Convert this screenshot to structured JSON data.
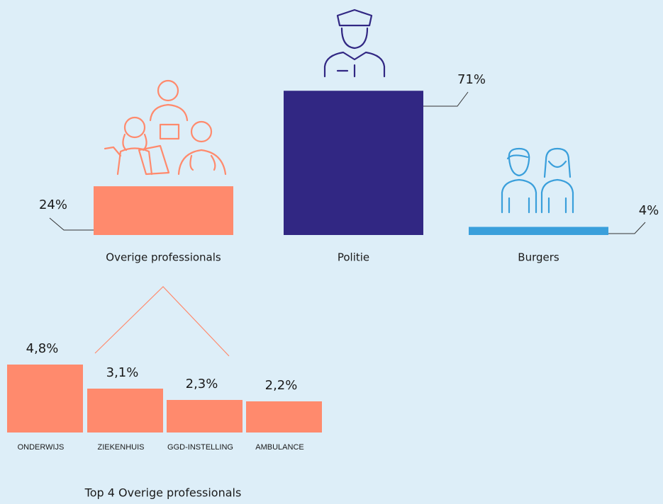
{
  "chart_data": [
    {
      "type": "bar",
      "categories": [
        "Overige professionals",
        "Politie",
        "Burgers"
      ],
      "values": [
        24,
        71,
        4
      ],
      "value_labels": [
        "24%",
        "71%",
        "4%"
      ],
      "colors": [
        "#ff8a6d",
        "#312783",
        "#3a9fdb"
      ]
    },
    {
      "type": "bar",
      "title": "Top 4 Overige professionals",
      "categories": [
        "ONDERWIJS",
        "ZIEKENHUIS",
        "GGD-INSTELLING",
        "AMBULANCE"
      ],
      "values": [
        4.8,
        3.1,
        2.3,
        2.2
      ],
      "value_labels": [
        "4,8%",
        "3,1%",
        "2,3%",
        "2,2%"
      ],
      "color": "#ff8a6d"
    }
  ]
}
